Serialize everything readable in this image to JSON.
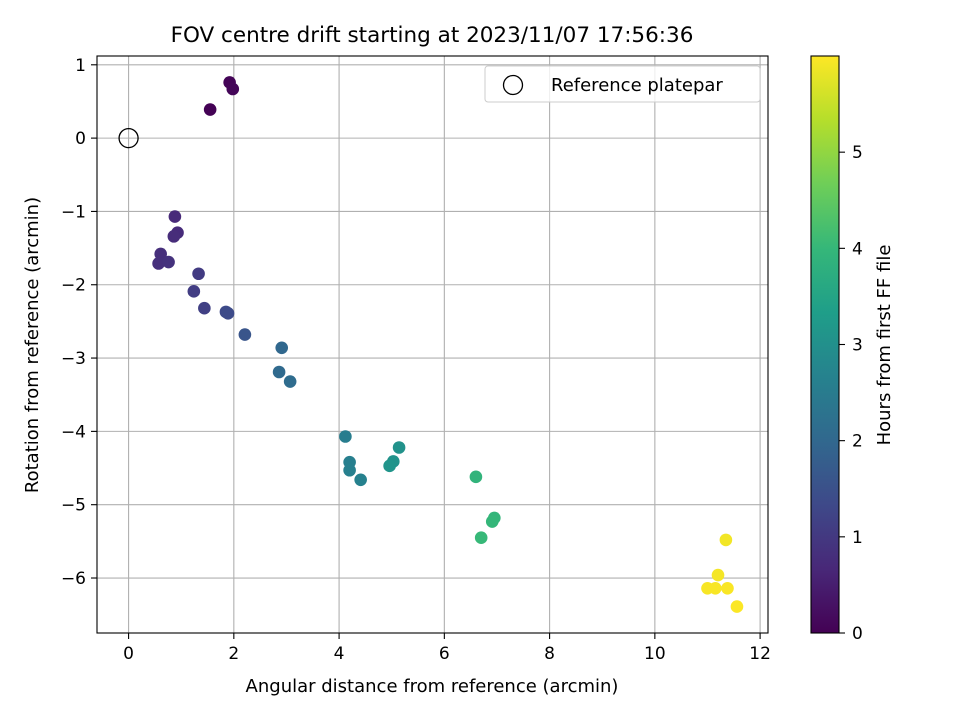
{
  "chart_data": {
    "type": "scatter",
    "title": "FOV centre drift starting at 2023/11/07 17:56:36",
    "xlabel": "Angular distance from reference (arcmin)",
    "ylabel": "Rotation from reference (arcmin)",
    "xlim": [
      -0.6,
      12.15
    ],
    "ylim": [
      -6.75,
      1.12
    ],
    "xticks": [
      0,
      2,
      4,
      6,
      8,
      10,
      12
    ],
    "yticks": [
      1,
      0,
      -1,
      -2,
      -3,
      -4,
      -5,
      -6
    ],
    "grid": true,
    "legend": {
      "placement": "top-right",
      "entries": [
        {
          "label": "Reference platepar",
          "marker": "open-circle"
        }
      ]
    },
    "reference_point": {
      "x": 0,
      "y": 0
    },
    "colorbar": {
      "label": "Hours from first FF file",
      "colormap": "viridis",
      "range": [
        0,
        6.0
      ],
      "ticks": [
        0,
        1,
        2,
        3,
        4,
        5
      ]
    },
    "points": [
      {
        "x": 1.55,
        "y": 0.39,
        "t": 0.02
      },
      {
        "x": 1.92,
        "y": 0.76,
        "t": 0.05
      },
      {
        "x": 1.98,
        "y": 0.67,
        "t": 0.08
      },
      {
        "x": 0.88,
        "y": -1.07,
        "t": 0.7
      },
      {
        "x": 0.93,
        "y": -1.29,
        "t": 0.73
      },
      {
        "x": 0.86,
        "y": -1.34,
        "t": 0.76
      },
      {
        "x": 0.61,
        "y": -1.58,
        "t": 0.8
      },
      {
        "x": 0.57,
        "y": -1.71,
        "t": 0.83
      },
      {
        "x": 0.76,
        "y": -1.69,
        "t": 0.86
      },
      {
        "x": 1.33,
        "y": -1.85,
        "t": 1.05
      },
      {
        "x": 1.24,
        "y": -2.09,
        "t": 1.1
      },
      {
        "x": 1.44,
        "y": -2.32,
        "t": 1.15
      },
      {
        "x": 1.85,
        "y": -2.37,
        "t": 1.35
      },
      {
        "x": 1.89,
        "y": -2.39,
        "t": 1.38
      },
      {
        "x": 2.21,
        "y": -2.68,
        "t": 1.6
      },
      {
        "x": 2.91,
        "y": -2.86,
        "t": 2.0
      },
      {
        "x": 2.86,
        "y": -3.19,
        "t": 2.05
      },
      {
        "x": 3.07,
        "y": -3.32,
        "t": 2.1
      },
      {
        "x": 4.12,
        "y": -4.07,
        "t": 2.55
      },
      {
        "x": 4.2,
        "y": -4.42,
        "t": 2.58
      },
      {
        "x": 4.2,
        "y": -4.53,
        "t": 2.61
      },
      {
        "x": 4.41,
        "y": -4.66,
        "t": 2.65
      },
      {
        "x": 5.14,
        "y": -4.22,
        "t": 3.05
      },
      {
        "x": 5.03,
        "y": -4.41,
        "t": 3.08
      },
      {
        "x": 4.96,
        "y": -4.47,
        "t": 3.11
      },
      {
        "x": 6.6,
        "y": -4.62,
        "t": 3.9
      },
      {
        "x": 6.95,
        "y": -5.18,
        "t": 3.95
      },
      {
        "x": 6.91,
        "y": -5.23,
        "t": 3.98
      },
      {
        "x": 6.7,
        "y": -5.45,
        "t": 4.02
      },
      {
        "x": 11.35,
        "y": -5.48,
        "t": 5.9
      },
      {
        "x": 11.2,
        "y": -5.96,
        "t": 5.92
      },
      {
        "x": 11.0,
        "y": -6.14,
        "t": 5.94
      },
      {
        "x": 11.15,
        "y": -6.14,
        "t": 5.95
      },
      {
        "x": 11.38,
        "y": -6.14,
        "t": 5.96
      },
      {
        "x": 11.56,
        "y": -6.39,
        "t": 5.98
      }
    ]
  }
}
